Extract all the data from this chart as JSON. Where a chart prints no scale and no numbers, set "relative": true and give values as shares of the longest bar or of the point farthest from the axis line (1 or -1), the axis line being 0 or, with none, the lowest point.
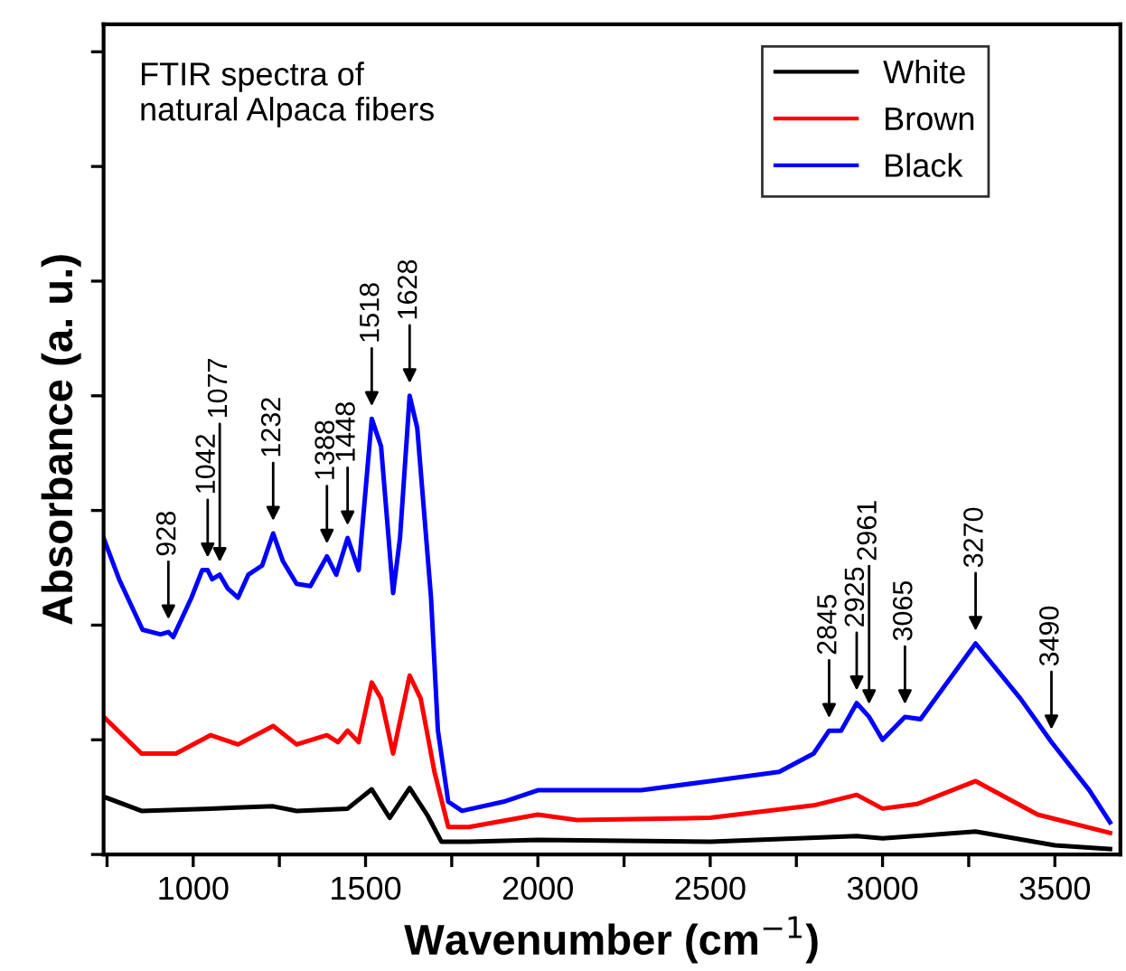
{
  "chart_data": {
    "type": "line",
    "title": "FTIR spectra of\nnatural Alpaca fibers",
    "xlabel": "Wavenumber (cm$^{−1}$)",
    "ylabel": "Absorbance (a. u.)",
    "relative": true,
    "xlim": [
      740,
      3690
    ],
    "xticks": [
      {
        "value": 750,
        "label": null
      },
      1000,
      {
        "value": 1250,
        "label": null
      },
      1500,
      {
        "value": 1750,
        "label": null
      },
      2000,
      {
        "value": 2250,
        "label": null
      },
      2500,
      {
        "value": 2750,
        "label": null
      },
      3000,
      {
        "value": 3250,
        "label": null
      },
      3500
    ],
    "legend": "top right",
    "grid": false,
    "series": [
      {
        "name": "White",
        "color": "#000000",
        "x": [
          740,
          850,
          1050,
          1232,
          1300,
          1448,
          1518,
          1570,
          1628,
          1680,
          1720,
          1800,
          2000,
          2500,
          2925,
          3000,
          3270,
          3500,
          3660
        ],
        "values": [
          0.126,
          0.095,
          0.1,
          0.105,
          0.095,
          0.1,
          0.142,
          0.08,
          0.145,
          0.085,
          0.028,
          0.028,
          0.032,
          0.028,
          0.04,
          0.035,
          0.05,
          0.02,
          0.012
        ]
      },
      {
        "name": "Brown",
        "color": "#ff0000",
        "x": [
          740,
          850,
          950,
          1050,
          1130,
          1232,
          1300,
          1388,
          1420,
          1448,
          1480,
          1518,
          1545,
          1580,
          1628,
          1660,
          1700,
          1740,
          1800,
          2000,
          2113,
          2500,
          2800,
          2925,
          3000,
          3100,
          3270,
          3450,
          3660
        ],
        "values": [
          0.3,
          0.22,
          0.22,
          0.26,
          0.24,
          0.28,
          0.24,
          0.26,
          0.245,
          0.27,
          0.245,
          0.375,
          0.34,
          0.22,
          0.39,
          0.34,
          0.18,
          0.06,
          0.06,
          0.087,
          0.075,
          0.08,
          0.107,
          0.13,
          0.1,
          0.11,
          0.16,
          0.087,
          0.047
        ]
      },
      {
        "name": "Black",
        "color": "#0000ff",
        "x": [
          740,
          785,
          853,
          905,
          928,
          942,
          995,
          1026,
          1042,
          1055,
          1077,
          1100,
          1130,
          1160,
          1200,
          1232,
          1260,
          1300,
          1340,
          1388,
          1415,
          1448,
          1480,
          1518,
          1545,
          1580,
          1600,
          1628,
          1650,
          1690,
          1710,
          1740,
          1780,
          1900,
          2000,
          2113,
          2300,
          2500,
          2700,
          2800,
          2845,
          2880,
          2925,
          2961,
          3000,
          3065,
          3110,
          3270,
          3400,
          3490,
          3600,
          3660
        ],
        "values": [
          0.69,
          0.6,
          0.49,
          0.48,
          0.485,
          0.474,
          0.56,
          0.62,
          0.62,
          0.6,
          0.61,
          0.58,
          0.56,
          0.61,
          0.63,
          0.7,
          0.64,
          0.59,
          0.585,
          0.65,
          0.61,
          0.69,
          0.62,
          0.95,
          0.89,
          0.57,
          0.69,
          1.0,
          0.93,
          0.56,
          0.27,
          0.115,
          0.095,
          0.115,
          0.14,
          0.14,
          0.14,
          0.16,
          0.18,
          0.22,
          0.27,
          0.27,
          0.33,
          0.3,
          0.25,
          0.3,
          0.295,
          0.46,
          0.34,
          0.245,
          0.14,
          0.07
        ]
      }
    ],
    "annotations": [
      {
        "text": "928",
        "x": 928,
        "y": 0.485
      },
      {
        "text": "1042",
        "x": 1042,
        "y": 0.62
      },
      {
        "text": "1077",
        "x": 1077,
        "y": 0.61
      },
      {
        "text": "1232",
        "x": 1232,
        "y": 0.7
      },
      {
        "text": "1388",
        "x": 1388,
        "y": 0.65
      },
      {
        "text": "1448",
        "x": 1448,
        "y": 0.69
      },
      {
        "text": "1518",
        "x": 1518,
        "y": 0.95
      },
      {
        "text": "1628",
        "x": 1628,
        "y": 1.0
      },
      {
        "text": "2845",
        "x": 2845,
        "y": 0.27
      },
      {
        "text": "2925",
        "x": 2925,
        "y": 0.33
      },
      {
        "text": "2961",
        "x": 2961,
        "y": 0.3
      },
      {
        "text": "3065",
        "x": 3065,
        "y": 0.3
      },
      {
        "text": "3270",
        "x": 3270,
        "y": 0.46
      },
      {
        "text": "3490",
        "x": 3490,
        "y": 0.245
      }
    ]
  }
}
